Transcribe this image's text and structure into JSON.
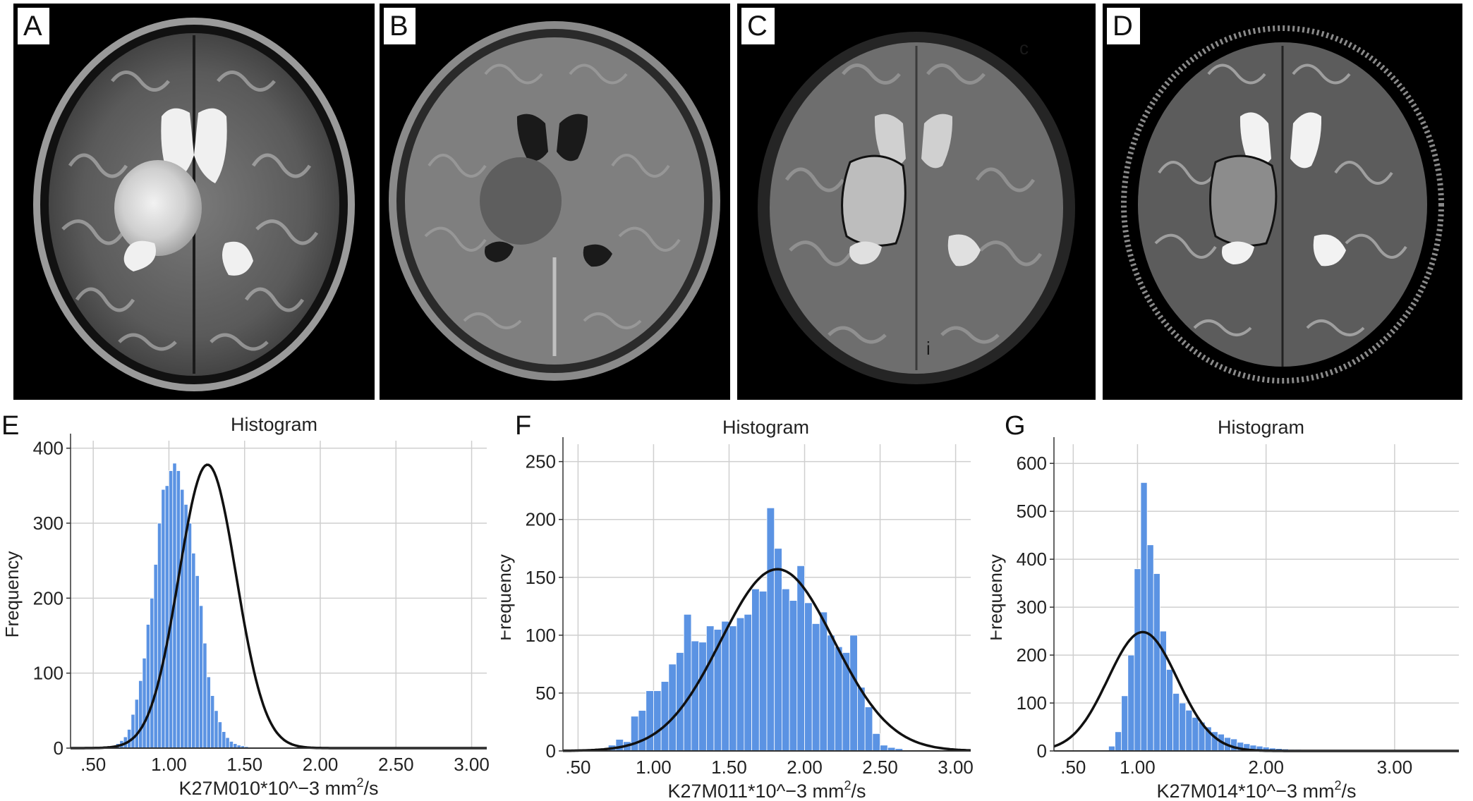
{
  "panels": {
    "mri": [
      {
        "label": "A",
        "overlay_text": []
      },
      {
        "label": "B",
        "overlay_text": []
      },
      {
        "label": "C",
        "overlay_text": [
          "c",
          "i"
        ]
      },
      {
        "label": "D",
        "overlay_text": []
      }
    ]
  },
  "chart_data": [
    {
      "panel": "E",
      "type": "bar",
      "title": "Histogram",
      "xlabel": "K27M010*10^−3 mm",
      "xlabel_suffix": "/s",
      "ylabel": "Frequency",
      "xlim": [
        0.35,
        3.1
      ],
      "ylim": [
        0,
        410
      ],
      "xticks": [
        ".50",
        "1.00",
        "1.50",
        "2.00",
        "2.50",
        "3.00"
      ],
      "xtick_values": [
        0.5,
        1.0,
        1.5,
        2.0,
        2.5,
        3.0
      ],
      "yticks": [
        0,
        100,
        200,
        300,
        400
      ],
      "bin_start": 0.625,
      "bin_width": 0.025,
      "values": [
        3,
        6,
        10,
        15,
        25,
        45,
        65,
        90,
        120,
        165,
        200,
        245,
        300,
        345,
        350,
        370,
        380,
        370,
        345,
        325,
        300,
        260,
        230,
        190,
        140,
        95,
        70,
        50,
        35,
        22,
        14,
        9,
        6,
        4,
        3,
        2,
        1,
        1
      ],
      "normal_curve": {
        "mean": 1.255,
        "sd": 0.19,
        "peak": 378
      }
    },
    {
      "panel": "F",
      "type": "bar",
      "title": "Histogram",
      "xlabel": "K27M011*10^−3 mm",
      "xlabel_suffix": "/s",
      "ylabel": "Frequency",
      "xlim": [
        0.4,
        3.1
      ],
      "ylim": [
        0,
        265
      ],
      "xticks": [
        ".50",
        "1.00",
        "1.50",
        "2.00",
        "2.50",
        "3.00"
      ],
      "xtick_values": [
        0.5,
        1.0,
        1.5,
        2.0,
        2.5,
        3.0
      ],
      "yticks": [
        0,
        50,
        100,
        150,
        200,
        250
      ],
      "bin_start": 0.7,
      "bin_width": 0.05,
      "values": [
        5,
        10,
        8,
        30,
        35,
        52,
        52,
        60,
        75,
        85,
        118,
        95,
        94,
        108,
        105,
        112,
        108,
        115,
        118,
        140,
        138,
        210,
        175,
        140,
        130,
        160,
        128,
        110,
        120,
        100,
        90,
        85,
        100,
        55,
        38,
        15,
        5,
        3,
        2
      ],
      "normal_curve": {
        "mean": 1.82,
        "sd": 0.375,
        "peak": 157
      }
    },
    {
      "panel": "G",
      "type": "bar",
      "title": "Histogram",
      "xlabel": "K27M014*10^−3 mm",
      "xlabel_suffix": "/s",
      "ylabel": "Frequency",
      "xlim": [
        0.35,
        3.5
      ],
      "ylim": [
        0,
        640
      ],
      "xticks": [
        ".50",
        "1.00",
        "2.00",
        "3.00"
      ],
      "xtick_values": [
        0.5,
        1.0,
        2.0,
        3.0
      ],
      "yticks": [
        0,
        100,
        200,
        300,
        400,
        500,
        600
      ],
      "bin_start": 0.775,
      "bin_width": 0.05,
      "values": [
        10,
        40,
        115,
        200,
        380,
        560,
        430,
        370,
        250,
        170,
        120,
        100,
        85,
        70,
        60,
        50,
        40,
        35,
        28,
        25,
        18,
        15,
        12,
        10,
        8,
        6,
        5,
        4,
        3,
        3,
        2,
        2,
        1,
        1,
        1
      ],
      "normal_curve": {
        "mean": 1.04,
        "sd": 0.27,
        "peak": 248
      }
    }
  ]
}
